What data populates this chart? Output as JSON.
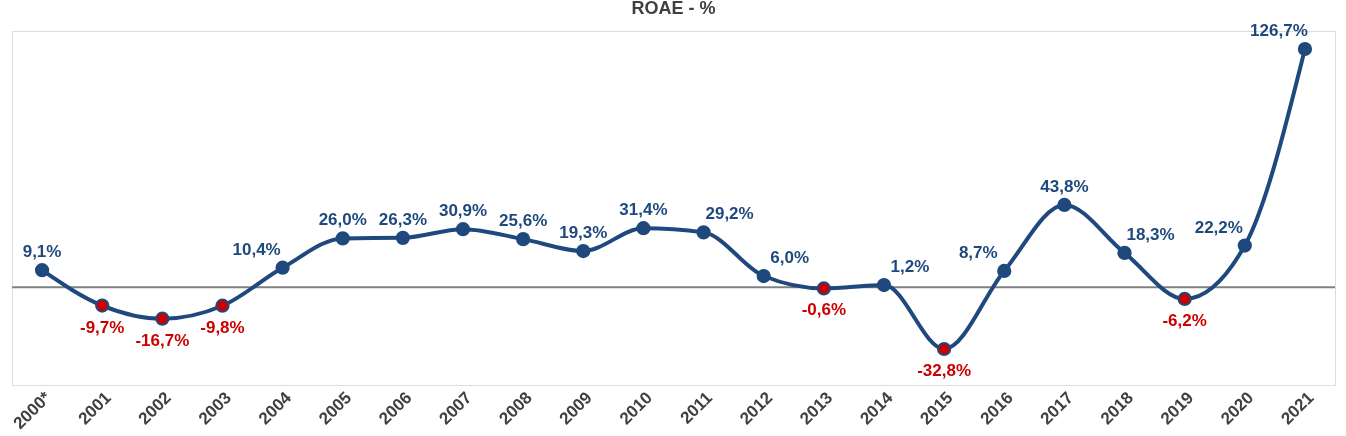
{
  "chart_data": {
    "type": "line",
    "title": "ROAE - %",
    "categories": [
      "2000*",
      "2001",
      "2002",
      "2003",
      "2004",
      "2005",
      "2006",
      "2007",
      "2008",
      "2009",
      "2010",
      "2011",
      "2012",
      "2013",
      "2014",
      "2015",
      "2016",
      "2017",
      "2018",
      "2019",
      "2020",
      "2021"
    ],
    "series": [
      {
        "color": "#1f497d",
        "values": [
          9.1,
          -9.7,
          -16.7,
          -9.8,
          10.4,
          26.0,
          26.3,
          30.9,
          25.6,
          19.3,
          31.4,
          29.2,
          6.0,
          -0.6,
          1.2,
          -32.8,
          8.7,
          43.8,
          18.3,
          -6.2,
          22.2,
          126.7
        ],
        "colors": [
          "#1f497d",
          "#cc0000",
          "#cc0000",
          "#cc0000",
          "#1f497d",
          "#1f497d",
          "#1f497d",
          "#1f497d",
          "#1f497d",
          "#1f497d",
          "#1f497d",
          "#1f497d",
          "#1f497d",
          "#cc0000",
          "#1f497d",
          "#cc0000",
          "#1f497d",
          "#1f497d",
          "#1f497d",
          "#cc0000",
          "#1f497d",
          "#1f497d"
        ],
        "value_labels": [
          "9,1%",
          "-9,7%",
          "-16,7%",
          "-9,8%",
          "10,4%",
          "26,0%",
          "26,3%",
          "30,9%",
          "25,6%",
          "19,3%",
          "31,4%",
          "29,2%",
          "6,0%",
          "-0,6%",
          "1,2%",
          "-32,8%",
          "8,7%",
          "43,8%",
          "18,3%",
          "-6,2%",
          "22,2%",
          "126,7%"
        ]
      }
    ],
    "ref_lines": [
      {
        "axis": "y",
        "value": 0,
        "color": "#808080"
      }
    ],
    "marker": "circle",
    "line_style": "solid",
    "grid": false,
    "tick_labels": "x"
  }
}
